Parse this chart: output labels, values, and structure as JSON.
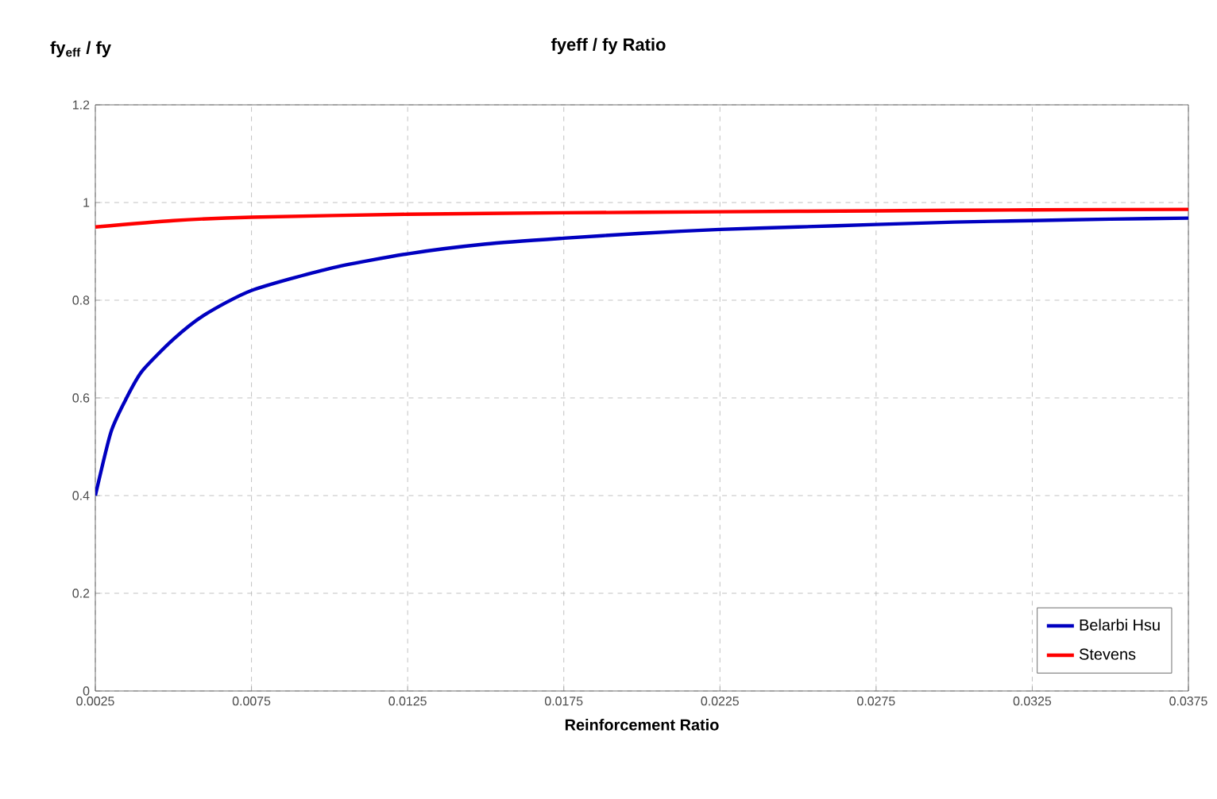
{
  "chart_data": {
    "type": "line",
    "title": "fyeff / fy Ratio",
    "ylabel": "fy$_{eff}$ / fy",
    "xlabel": "Reinforcement Ratio",
    "xlim": [
      0.0025,
      0.0375
    ],
    "xticks": [
      0.0025,
      0.0075,
      0.0125,
      0.0175,
      0.0225,
      0.0275,
      0.0325,
      0.0375
    ],
    "ylim": [
      0,
      1.2
    ],
    "yticks": [
      0,
      0.2,
      0.4,
      0.6,
      0.8,
      1,
      1.2
    ],
    "grid": true,
    "legend": "bottom right",
    "marker": "none",
    "line_style": "solid",
    "series": [
      {
        "name": "Belarbi Hsu",
        "color": "#0000c0",
        "x": [
          0.0025,
          0.003,
          0.0035,
          0.004,
          0.005,
          0.006,
          0.0075,
          0.01,
          0.0125,
          0.015,
          0.0175,
          0.02,
          0.0225,
          0.025,
          0.0275,
          0.03,
          0.0325,
          0.035,
          0.0375
        ],
        "values": [
          0.4,
          0.53,
          0.6,
          0.655,
          0.72,
          0.77,
          0.82,
          0.865,
          0.895,
          0.915,
          0.927,
          0.937,
          0.945,
          0.95,
          0.955,
          0.96,
          0.963,
          0.966,
          0.968
        ]
      },
      {
        "name": "Stevens",
        "color": "#ff0000",
        "x": [
          0.0025,
          0.005,
          0.0075,
          0.0125,
          0.0175,
          0.0225,
          0.0275,
          0.0325,
          0.0375
        ],
        "values": [
          0.95,
          0.963,
          0.97,
          0.976,
          0.979,
          0.981,
          0.983,
          0.985,
          0.986
        ]
      }
    ]
  }
}
